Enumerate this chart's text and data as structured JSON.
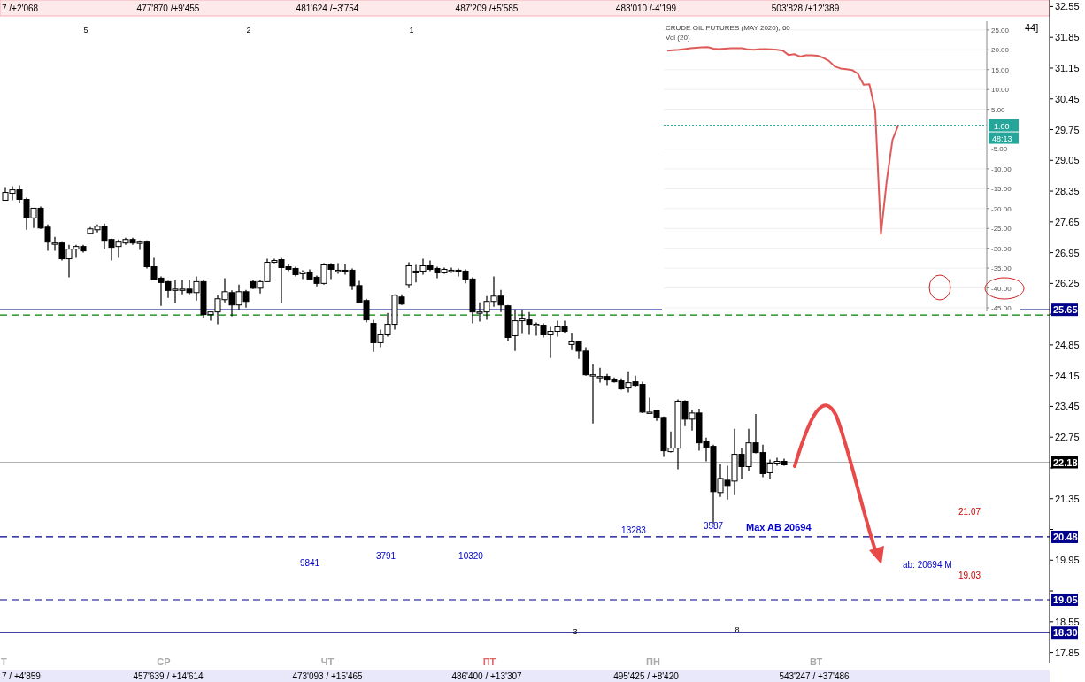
{
  "chart_data": [
    {
      "type": "candlestick",
      "color": "#000000",
      "categories": [
        null,
        null,
        null,
        null,
        null,
        null,
        null,
        null,
        null,
        null,
        null,
        null,
        null,
        null,
        null,
        null,
        null,
        null,
        null,
        null,
        null,
        null,
        null,
        null,
        null,
        null,
        null,
        null,
        null,
        null,
        null,
        null,
        null,
        null,
        null,
        null,
        null,
        null,
        null,
        null,
        null,
        null,
        null,
        null,
        null,
        null,
        null,
        null,
        null,
        null,
        null,
        null,
        null,
        null,
        null,
        null,
        null,
        null,
        null,
        null,
        null,
        null,
        null,
        null,
        null,
        null,
        null,
        null,
        null,
        null,
        null,
        null,
        null,
        null,
        null,
        null,
        null,
        null,
        null,
        null,
        null,
        null,
        null,
        null,
        null,
        null,
        null,
        null,
        null,
        null,
        null,
        null,
        null,
        null,
        null,
        null,
        null,
        null,
        null,
        null,
        null,
        null,
        null,
        null,
        null,
        null,
        null,
        null,
        null,
        null,
        null,
        null,
        null,
        null,
        null,
        null,
        null,
        null,
        null,
        null,
        null,
        null,
        null,
        null,
        null,
        null,
        null,
        null,
        null,
        null,
        null,
        null,
        null,
        null,
        null,
        null,
        null,
        null,
        null,
        null,
        null,
        null,
        null,
        null,
        null,
        null,
        null,
        null
      ],
      "ohlc": [
        [
          28.14,
          28.44,
          28.14,
          28.32
        ],
        [
          28.3,
          28.46,
          28.14,
          28.38
        ],
        [
          28.38,
          28.48,
          28.08,
          28.16
        ],
        [
          28.16,
          28.2,
          27.47,
          27.74
        ],
        [
          27.74,
          27.96,
          27.51,
          27.96
        ],
        [
          27.96,
          28.0,
          27.49,
          27.51
        ],
        [
          27.53,
          27.59,
          26.99,
          27.19
        ],
        [
          27.17,
          27.31,
          26.99,
          27.17
        ],
        [
          27.17,
          27.19,
          26.77,
          26.81
        ],
        [
          26.81,
          27.13,
          26.39,
          27.03
        ],
        [
          27.03,
          27.13,
          26.83,
          27.09
        ],
        [
          27.09,
          27.13,
          26.95,
          26.99
        ],
        [
          27.39,
          27.53,
          27.39,
          27.49
        ],
        [
          27.47,
          27.59,
          27.41,
          27.55
        ],
        [
          27.55,
          27.61,
          27.03,
          27.21
        ],
        [
          27.25,
          27.27,
          26.77,
          27.07
        ],
        [
          27.09,
          27.25,
          26.83,
          27.19
        ],
        [
          27.17,
          27.29,
          27.13,
          27.25
        ],
        [
          27.25,
          27.29,
          27.13,
          27.17
        ],
        [
          27.19,
          27.23,
          27.01,
          27.19
        ],
        [
          27.19,
          27.23,
          26.59,
          26.63
        ],
        [
          26.63,
          26.83,
          26.33,
          26.33
        ],
        [
          26.37,
          26.41,
          25.74,
          26.27
        ],
        [
          26.29,
          26.31,
          25.92,
          26.09
        ],
        [
          26.12,
          26.33,
          25.8,
          26.12
        ],
        [
          26.12,
          26.33,
          26.0,
          26.12
        ],
        [
          26.12,
          26.33,
          26.0,
          26.04
        ],
        [
          26.04,
          26.41,
          25.86,
          26.29
        ],
        [
          26.29,
          26.33,
          25.46,
          25.54
        ],
        [
          25.54,
          25.6,
          25.4,
          25.6
        ],
        [
          25.6,
          25.98,
          25.32,
          25.9
        ],
        [
          25.88,
          26.37,
          25.82,
          26.06
        ],
        [
          26.04,
          26.09,
          25.5,
          25.76
        ],
        [
          25.76,
          26.22,
          25.64,
          26.06
        ],
        [
          26.06,
          26.1,
          25.7,
          25.84
        ],
        [
          26.29,
          26.33,
          26.12,
          26.14
        ],
        [
          26.14,
          26.33,
          26.02,
          26.29
        ],
        [
          26.29,
          26.81,
          26.29,
          26.73
        ],
        [
          26.73,
          26.81,
          26.71,
          26.77
        ],
        [
          26.79,
          26.83,
          25.8,
          26.61
        ],
        [
          26.63,
          26.69,
          26.53,
          26.57
        ],
        [
          26.59,
          26.63,
          26.41,
          26.45
        ],
        [
          26.47,
          26.55,
          26.35,
          26.51
        ],
        [
          26.51,
          26.57,
          26.33,
          26.35
        ],
        [
          26.39,
          26.43,
          26.18,
          26.25
        ],
        [
          26.25,
          26.71,
          26.22,
          26.67
        ],
        [
          26.67,
          26.71,
          26.35,
          26.57
        ],
        [
          26.55,
          26.71,
          26.47,
          26.55
        ],
        [
          26.55,
          26.69,
          26.45,
          26.51
        ],
        [
          26.55,
          26.59,
          26.1,
          26.2
        ],
        [
          26.2,
          26.31,
          25.82,
          25.82
        ],
        [
          25.86,
          25.9,
          25.36,
          25.42
        ],
        [
          25.34,
          25.42,
          24.69,
          24.9
        ],
        [
          24.9,
          25.2,
          24.8,
          25.08
        ],
        [
          25.08,
          25.58,
          25.04,
          25.32
        ],
        [
          25.32,
          26.0,
          25.2,
          25.98
        ],
        [
          25.94,
          26.0,
          25.76,
          25.78
        ],
        [
          26.22,
          26.73,
          26.14,
          26.65
        ],
        [
          26.53,
          26.67,
          26.27,
          26.49
        ],
        [
          26.53,
          26.81,
          26.45,
          26.65
        ],
        [
          26.65,
          26.77,
          26.53,
          26.57
        ],
        [
          26.59,
          26.63,
          26.37,
          26.49
        ],
        [
          26.49,
          26.61,
          26.47,
          26.57
        ],
        [
          26.55,
          26.61,
          26.49,
          26.55
        ],
        [
          26.55,
          26.59,
          26.41,
          26.51
        ],
        [
          26.53,
          26.57,
          26.25,
          26.33
        ],
        [
          26.35,
          26.39,
          25.34,
          25.6
        ],
        [
          25.6,
          25.82,
          25.38,
          25.6
        ],
        [
          25.6,
          25.96,
          25.42,
          25.84
        ],
        [
          25.84,
          26.41,
          25.72,
          25.96
        ],
        [
          25.96,
          26.1,
          25.6,
          25.76
        ],
        [
          25.74,
          25.76,
          24.94,
          25.02
        ],
        [
          25.06,
          25.66,
          24.71,
          25.4
        ],
        [
          25.4,
          25.66,
          25.1,
          25.44
        ],
        [
          25.42,
          25.6,
          25.08,
          25.32
        ],
        [
          25.32,
          25.36,
          25.06,
          25.32
        ],
        [
          25.3,
          25.34,
          25.02,
          25.08
        ],
        [
          25.08,
          25.26,
          24.55,
          25.16
        ],
        [
          25.16,
          25.4,
          25.04,
          25.26
        ],
        [
          25.28,
          25.4,
          25.12,
          25.16
        ],
        [
          24.86,
          25.12,
          24.73,
          24.92
        ],
        [
          24.92,
          24.92,
          24.53,
          24.71
        ],
        [
          24.71,
          24.8,
          24.15,
          24.17
        ],
        [
          24.17,
          24.41,
          23.06,
          24.17
        ],
        [
          24.13,
          24.33,
          23.99,
          24.13
        ],
        [
          24.13,
          24.19,
          23.93,
          24.05
        ],
        [
          24.07,
          24.11,
          23.99,
          24.01
        ],
        [
          24.03,
          24.09,
          23.83,
          23.85
        ],
        [
          23.87,
          24.25,
          23.77,
          23.99
        ],
        [
          24.01,
          24.15,
          23.89,
          23.93
        ],
        [
          23.95,
          24.01,
          23.3,
          23.32
        ],
        [
          23.32,
          23.65,
          23.3,
          23.32
        ],
        [
          23.36,
          23.38,
          23.12,
          23.2
        ],
        [
          23.2,
          23.22,
          22.3,
          22.44
        ],
        [
          22.42,
          22.88,
          22.4,
          22.5
        ],
        [
          22.5,
          23.61,
          22.02,
          23.57
        ],
        [
          23.57,
          23.59,
          23.0,
          23.16
        ],
        [
          23.16,
          23.38,
          22.9,
          23.3
        ],
        [
          23.3,
          23.4,
          22.44,
          22.62
        ],
        [
          22.66,
          22.74,
          22.2,
          22.52
        ],
        [
          22.54,
          22.58,
          20.77,
          21.51
        ],
        [
          21.49,
          22.14,
          21.39,
          21.81
        ],
        [
          21.77,
          22.1,
          21.33,
          21.65
        ],
        [
          21.75,
          22.94,
          21.43,
          22.36
        ],
        [
          22.36,
          22.5,
          21.81,
          22.08
        ],
        [
          22.08,
          22.94,
          21.98,
          22.62
        ],
        [
          22.62,
          23.28,
          22.38,
          22.4
        ],
        [
          22.4,
          22.58,
          21.84,
          21.92
        ],
        [
          21.94,
          22.24,
          21.79,
          22.16
        ],
        [
          22.16,
          22.28,
          22.1,
          22.2
        ],
        [
          22.2,
          22.26,
          22.1,
          22.12
        ],
        null,
        null,
        null,
        null,
        null,
        null,
        null,
        null,
        null,
        null,
        null,
        null,
        null,
        null,
        null,
        null,
        null,
        null,
        null,
        null,
        null,
        null,
        null,
        null,
        null,
        null,
        null,
        null,
        null,
        null,
        null,
        null,
        null,
        null,
        null,
        null,
        null
      ],
      "ylim": [
        17.6,
        32.7
      ],
      "yticks": [
        32.55,
        31.85,
        31.15,
        30.45,
        29.75,
        29.05,
        28.35,
        27.65,
        26.95,
        26.25,
        {
          "value": 25.55,
          "label": null
        },
        24.85,
        24.15,
        23.45,
        22.75,
        {
          "value": 22.05,
          "label": null
        },
        21.35,
        {
          "value": 20.65,
          "label": null
        },
        19.95,
        {
          "value": 19.25,
          "label": null
        },
        18.55,
        17.85
      ],
      "ref_lines": [
        {
          "axis": "y",
          "value": 25.65,
          "label": "25.65",
          "color": "#00008b",
          "line_style": "solid"
        },
        {
          "axis": "y",
          "value": 25.53,
          "label": null,
          "color": "#008000",
          "line_style": "dashed"
        },
        {
          "axis": "y",
          "value": 22.18,
          "label": "22.18",
          "color": "#b0b0b0",
          "line_style": "solid"
        },
        {
          "axis": "y",
          "value": 20.48,
          "label": "20.48",
          "color": "#00008b",
          "line_style": "dashed"
        },
        {
          "axis": "y",
          "value": 19.05,
          "label": "19.05",
          "color": "#00008b",
          "line_style": "dashed"
        },
        {
          "axis": "y",
          "value": 18.3,
          "label": "18.30",
          "color": "#00008b",
          "line_style": "solid"
        }
      ],
      "annotations": [
        "7 /+2'068",
        "477'870 /+9'455",
        "481'624 /+3'754",
        "487'209 /+5'585",
        "483'010 /-4'199",
        "503'828 /+12'389",
        "5",
        "2",
        "1",
        "44]",
        "9841",
        "3791",
        "10320",
        "13283",
        "3587",
        "Max AB 20694",
        "21.07",
        "ab: 20694 M",
        "19.03",
        "3",
        "8",
        "Т",
        "СР",
        "ЧТ",
        "ПТ",
        "ПН",
        "ВТ",
        "7 / +4'859",
        "457'639 / +14'614",
        "473'093 / +15'465",
        "486'400 / +13'307",
        "495'425 / +8'420",
        "543'247 / +37'486"
      ],
      "grid": false
    },
    {
      "type": "line",
      "title": "CRUDE OIL FUTURES (MAY 2020), 60",
      "subtitle": "Vol (20)",
      "categories": [
        null,
        null,
        null,
        null,
        null,
        null,
        null,
        null,
        null,
        null,
        null,
        null,
        null,
        null,
        null,
        null,
        null,
        null,
        null,
        null,
        null,
        null,
        null,
        null,
        null,
        null,
        null,
        null,
        null,
        null,
        null,
        null,
        null,
        null,
        null,
        null,
        null,
        null,
        null,
        null,
        null
      ],
      "series": [
        {
          "color": "#e05a5a",
          "values": [
            19.8,
            19.9,
            20.0,
            20.2,
            20.4,
            20.5,
            20.6,
            20.7,
            20.3,
            20.2,
            20.3,
            20.4,
            20.4,
            20.4,
            20.1,
            20.0,
            20.2,
            20.2,
            20.1,
            20.0,
            19.8,
            18.7,
            18.9,
            18.3,
            18.6,
            18.6,
            18.5,
            18.0,
            17.2,
            15.8,
            15.3,
            15.1,
            14.9,
            14.0,
            11.2,
            11.3,
            4.8,
            -26.4,
            -13.0,
            -2.7,
            1.0
          ]
        }
      ],
      "ylim": [
        -45.9,
        27.2
      ],
      "yticks": [
        {
          "value": 25,
          "label": "25.00"
        },
        {
          "value": 20,
          "label": "20.00"
        },
        {
          "value": 15,
          "label": "15.00"
        },
        {
          "value": 10,
          "label": "10.00"
        },
        {
          "value": 5,
          "label": "5.00"
        },
        {
          "value": -5,
          "label": "-5.00"
        },
        {
          "value": -10,
          "label": "-10.00"
        },
        {
          "value": -15,
          "label": "-15.00"
        },
        {
          "value": -20,
          "label": "-20.00"
        },
        {
          "value": -25,
          "label": "-25.00"
        },
        {
          "value": -30,
          "label": "-30.00"
        },
        {
          "value": -35,
          "label": "-35.00"
        },
        {
          "value": -40,
          "label": "-40.00"
        },
        {
          "value": -45,
          "label": "-45.00"
        }
      ],
      "ref_lines": [
        {
          "axis": "y",
          "value": 1,
          "label": "1.00",
          "color": "#26a69a",
          "line_style": "dotted"
        }
      ],
      "annotations": [
        "48:13"
      ],
      "grid": true,
      "tick_labels": "y"
    }
  ]
}
